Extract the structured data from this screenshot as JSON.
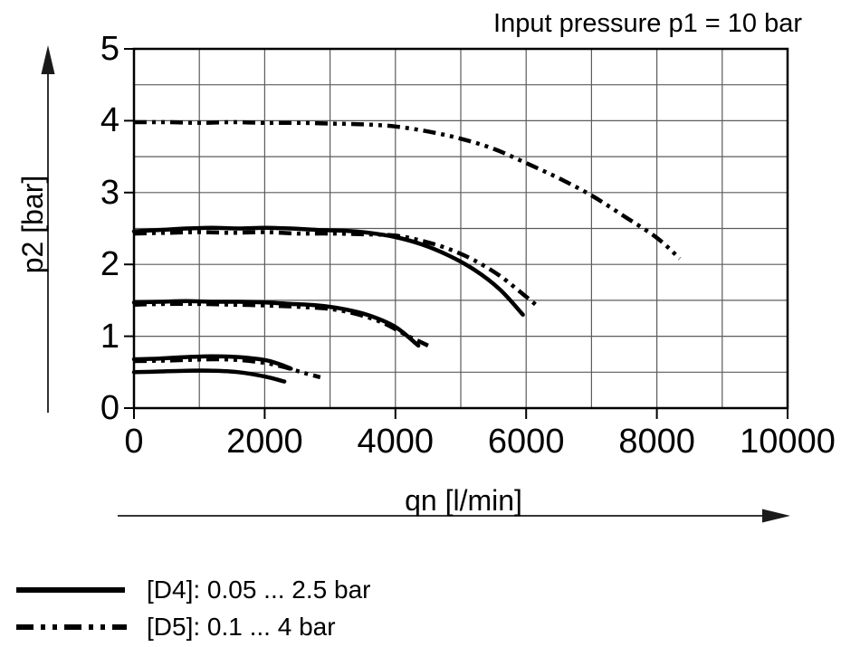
{
  "title": "Input pressure p1 = 10 bar",
  "colors": {
    "line": "#000000",
    "grid": "#5c5c5c",
    "text": "#000000",
    "background": "#ffffff"
  },
  "chart_data": {
    "type": "line",
    "title": "Input pressure p1 = 10 bar",
    "xlabel": "qn [l/min]",
    "ylabel": "p2 [bar]",
    "xlim": [
      0,
      10000
    ],
    "ylim": [
      0,
      5
    ],
    "x_gridstep": 1000,
    "y_gridstep": 0.5,
    "grid": "on",
    "legend_position": "below-left",
    "x_ticks": [
      {
        "v": 0,
        "label": "0"
      },
      {
        "v": 2000,
        "label": "2000"
      },
      {
        "v": 4000,
        "label": "4000"
      },
      {
        "v": 6000,
        "label": "6000"
      },
      {
        "v": 8000,
        "label": "8000"
      },
      {
        "v": 10000,
        "label": "10000"
      }
    ],
    "y_ticks": [
      {
        "v": 0,
        "label": "0"
      },
      {
        "v": 1,
        "label": "1"
      },
      {
        "v": 2,
        "label": "2"
      },
      {
        "v": 3,
        "label": "3"
      },
      {
        "v": 4,
        "label": "4"
      },
      {
        "v": 5,
        "label": "5"
      }
    ],
    "legend": [
      {
        "style": "solid",
        "label": "[D4]: 0.05 ... 2.5 bar"
      },
      {
        "style": "dash-dot-dot",
        "label": "[D5]: 0.1 ... 4 bar"
      }
    ],
    "series": [
      {
        "name": "D5 curve at 4 bar setting",
        "style": "dash-dot-dot",
        "points": [
          [
            0,
            3.98
          ],
          [
            500,
            3.98
          ],
          [
            1000,
            3.97
          ],
          [
            1500,
            3.98
          ],
          [
            2000,
            3.97
          ],
          [
            2500,
            3.97
          ],
          [
            3000,
            3.96
          ],
          [
            3500,
            3.95
          ],
          [
            4000,
            3.92
          ],
          [
            4500,
            3.85
          ],
          [
            5000,
            3.75
          ],
          [
            5500,
            3.61
          ],
          [
            6000,
            3.41
          ],
          [
            6500,
            3.2
          ],
          [
            7000,
            2.96
          ],
          [
            7500,
            2.67
          ],
          [
            8000,
            2.37
          ],
          [
            8350,
            2.08
          ]
        ]
      },
      {
        "name": "D4 curve at 2.5 bar setting",
        "style": "solid",
        "points": [
          [
            0,
            2.46
          ],
          [
            400,
            2.48
          ],
          [
            800,
            2.5
          ],
          [
            1200,
            2.51
          ],
          [
            1600,
            2.5
          ],
          [
            2000,
            2.51
          ],
          [
            2400,
            2.5
          ],
          [
            2800,
            2.48
          ],
          [
            3200,
            2.47
          ],
          [
            3600,
            2.44
          ],
          [
            4000,
            2.38
          ],
          [
            4400,
            2.28
          ],
          [
            4800,
            2.13
          ],
          [
            5200,
            1.93
          ],
          [
            5600,
            1.65
          ],
          [
            5950,
            1.3
          ]
        ]
      },
      {
        "name": "D5 curve at 2.4 bar setting",
        "style": "dash-dot-dot",
        "points": [
          [
            0,
            2.43
          ],
          [
            500,
            2.44
          ],
          [
            1000,
            2.45
          ],
          [
            1500,
            2.44
          ],
          [
            2000,
            2.45
          ],
          [
            2500,
            2.43
          ],
          [
            3000,
            2.43
          ],
          [
            3500,
            2.42
          ],
          [
            4000,
            2.4
          ],
          [
            4400,
            2.33
          ],
          [
            4800,
            2.22
          ],
          [
            5200,
            2.06
          ],
          [
            5600,
            1.84
          ],
          [
            6000,
            1.55
          ],
          [
            6200,
            1.4
          ]
        ]
      },
      {
        "name": "D4 curve at 1.5 bar setting",
        "style": "solid",
        "points": [
          [
            0,
            1.47
          ],
          [
            400,
            1.48
          ],
          [
            800,
            1.49
          ],
          [
            1200,
            1.48
          ],
          [
            1600,
            1.48
          ],
          [
            2000,
            1.47
          ],
          [
            2400,
            1.45
          ],
          [
            2800,
            1.43
          ],
          [
            3200,
            1.38
          ],
          [
            3600,
            1.29
          ],
          [
            4000,
            1.13
          ],
          [
            4350,
            0.87
          ]
        ]
      },
      {
        "name": "D5 curve at 1.45 bar setting",
        "style": "dash-dot-dot",
        "points": [
          [
            0,
            1.44
          ],
          [
            500,
            1.45
          ],
          [
            1000,
            1.45
          ],
          [
            1500,
            1.44
          ],
          [
            2000,
            1.43
          ],
          [
            2500,
            1.41
          ],
          [
            3000,
            1.38
          ],
          [
            3400,
            1.31
          ],
          [
            3800,
            1.19
          ],
          [
            4200,
            1.0
          ],
          [
            4500,
            0.87
          ]
        ]
      },
      {
        "name": "D4 curve at 0.65 bar setting",
        "style": "solid",
        "points": [
          [
            0,
            0.68
          ],
          [
            400,
            0.69
          ],
          [
            800,
            0.71
          ],
          [
            1200,
            0.72
          ],
          [
            1600,
            0.71
          ],
          [
            2000,
            0.67
          ],
          [
            2200,
            0.62
          ],
          [
            2400,
            0.55
          ]
        ]
      },
      {
        "name": "D5 curve at 0.65 bar setting",
        "style": "dash-dot-dot",
        "points": [
          [
            0,
            0.655
          ],
          [
            400,
            0.66
          ],
          [
            800,
            0.67
          ],
          [
            1200,
            0.68
          ],
          [
            1600,
            0.67
          ],
          [
            2000,
            0.63
          ],
          [
            2300,
            0.57
          ],
          [
            2600,
            0.49
          ],
          [
            2850,
            0.43
          ]
        ]
      },
      {
        "name": "D4 curve at 0.5 bar setting",
        "style": "solid",
        "points": [
          [
            0,
            0.5
          ],
          [
            400,
            0.51
          ],
          [
            800,
            0.52
          ],
          [
            1200,
            0.52
          ],
          [
            1600,
            0.5
          ],
          [
            2000,
            0.44
          ],
          [
            2300,
            0.37
          ]
        ]
      }
    ]
  }
}
